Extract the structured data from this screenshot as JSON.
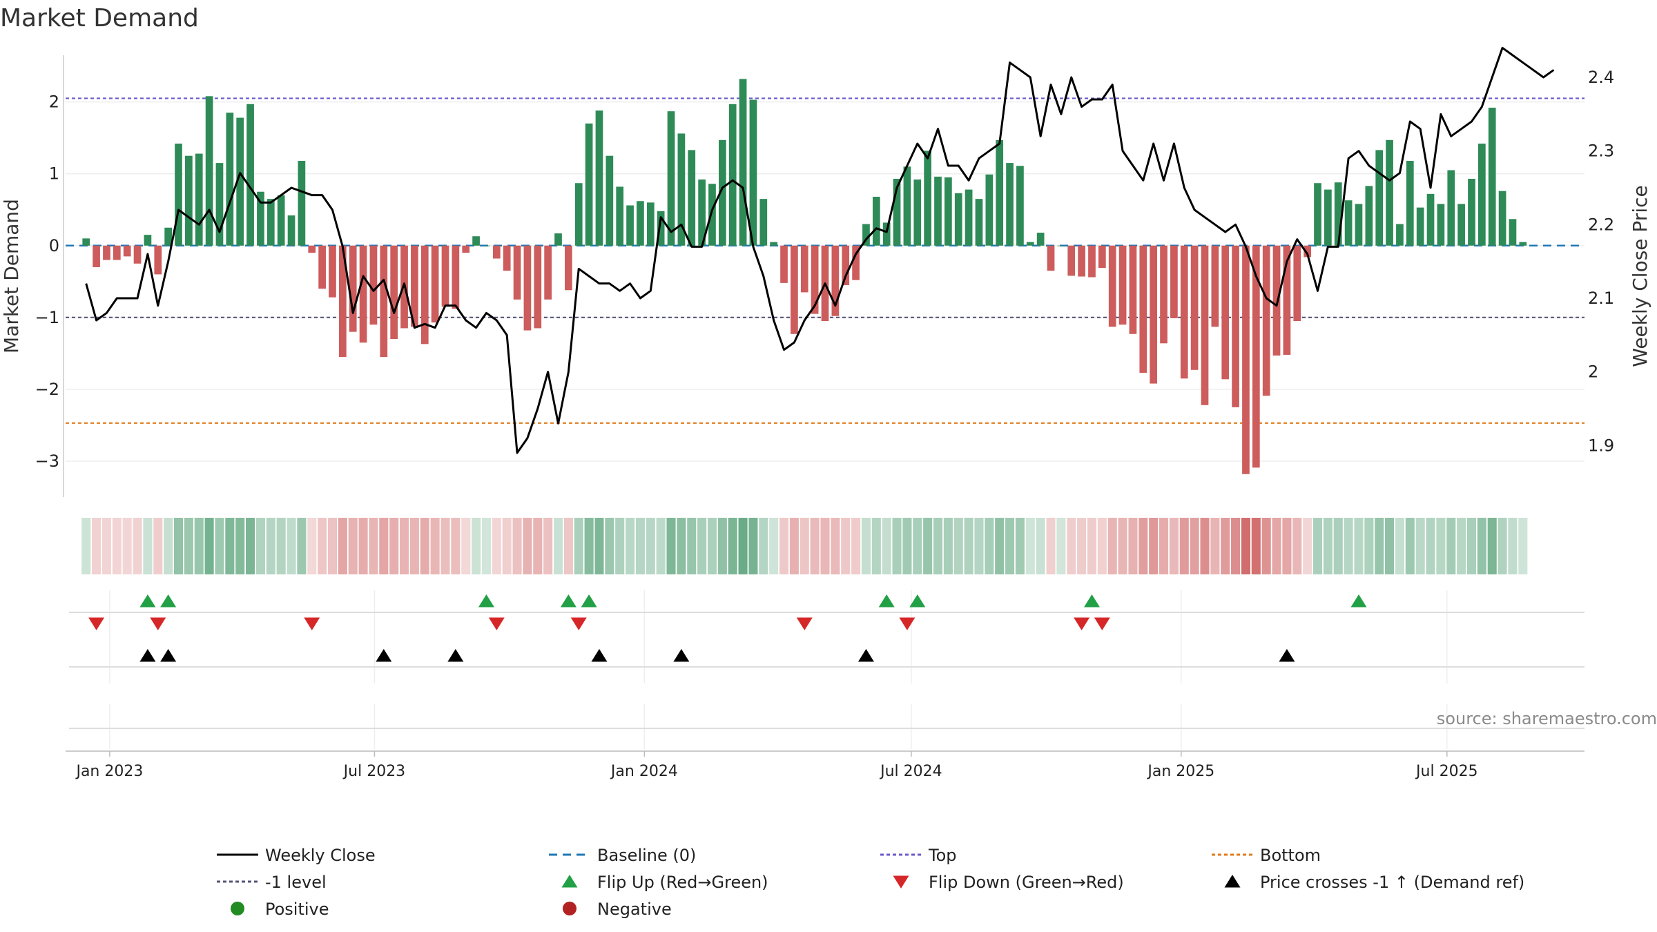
{
  "title": "Market Demand",
  "source": "source: sharemaestro.com",
  "colors": {
    "positive": "#2e8b57",
    "negative": "#cd5c5c",
    "price": "#000000",
    "baseline": "#1f77b4",
    "top": "#6a5acd",
    "minus_one": "#555577",
    "bottom": "#e07b1a",
    "flip_up": "#22a045",
    "flip_down": "#d62728",
    "cross": "#000000",
    "positive_dot": "#228b22",
    "negative_dot": "#b22222"
  },
  "chart_data": {
    "type": "bar",
    "title": "Market Demand",
    "ylabel": "Market Demand",
    "y2label": "Weekly Close Price",
    "ylim": [
      -3.5,
      2.65
    ],
    "y2lim": [
      1.83,
      2.43
    ],
    "yticks": [
      2,
      1,
      0,
      -1,
      -2,
      -3
    ],
    "yticklabels": [
      "2",
      "1",
      "0",
      "−1",
      "−2",
      "−3"
    ],
    "y2ticks": [
      2.4,
      2.3,
      2.2,
      2.1,
      2.0,
      1.9
    ],
    "y2ticklabels": [
      "2.4",
      "2.3",
      "2.2",
      "2.1",
      "2",
      "1.9"
    ],
    "x_start": "2022-12-19",
    "x_weeks": 145,
    "x_axis_weeks": [
      -2,
      146
    ],
    "xticks": [
      {
        "week": 2.3,
        "label": "Jan 2023"
      },
      {
        "week": 28.1,
        "label": "Jul 2023"
      },
      {
        "week": 54.4,
        "label": "Jan 2024"
      },
      {
        "week": 80.4,
        "label": "Jul 2024"
      },
      {
        "week": 106.7,
        "label": "Jan 2025"
      },
      {
        "week": 132.6,
        "label": "Jul 2025"
      }
    ],
    "reference_lines": {
      "top": 2.05,
      "minus_one": -1.0,
      "bottom": -2.47,
      "baseline": 0
    },
    "series": [
      {
        "name": "Market Demand",
        "values": [
          0.1,
          -0.3,
          -0.2,
          -0.2,
          -0.15,
          -0.25,
          0.15,
          -0.4,
          0.25,
          1.42,
          1.25,
          1.28,
          2.08,
          1.15,
          1.85,
          1.78,
          1.97,
          0.75,
          0.65,
          0.7,
          0.42,
          1.18,
          -0.1,
          -0.6,
          -0.72,
          -1.55,
          -1.2,
          -1.35,
          -1.1,
          -1.55,
          -1.3,
          -1.15,
          -1.13,
          -1.37,
          -1.07,
          -0.85,
          -0.88,
          -0.1,
          0.13,
          0,
          -0.18,
          -0.35,
          -0.75,
          -1.18,
          -1.15,
          -0.75,
          0.17,
          -0.62,
          0.87,
          1.7,
          1.88,
          1.25,
          0.82,
          0.56,
          0.62,
          0.6,
          0.48,
          1.87,
          1.56,
          1.33,
          0.92,
          0.86,
          1.47,
          1.97,
          2.32,
          2.03,
          0.65,
          0.05,
          -0.52,
          -1.23,
          -0.65,
          -0.95,
          -1.05,
          -0.98,
          -0.55,
          -0.48,
          0.3,
          0.68,
          0.32,
          0.93,
          1.1,
          0.92,
          1.32,
          0.96,
          0.95,
          0.73,
          0.78,
          0.65,
          0.99,
          1.47,
          1.15,
          1.11,
          0.05,
          0.18,
          -0.35,
          0,
          -0.42,
          -0.43,
          -0.44,
          -0.31,
          -1.13,
          -1.1,
          -1.23,
          -1.77,
          -1.92,
          -1.36,
          -1.01,
          -1.85,
          -1.73,
          -2.22,
          -1.13,
          -1.86,
          -2.25,
          -3.18,
          -3.09,
          -2.09,
          -1.53,
          -1.52,
          -1.05,
          -0.16,
          0.87,
          0.78,
          0.88,
          0.63,
          0.58,
          0.83,
          1.33,
          1.47,
          0.3,
          1.18,
          0.53,
          0.72,
          0.58,
          1.05,
          0.58,
          0.93,
          1.42,
          1.92,
          0.76,
          0.37,
          0.05
        ]
      },
      {
        "name": "Weekly Close",
        "axis": "right",
        "values": [
          2.12,
          2.07,
          2.08,
          2.1,
          2.1,
          2.1,
          2.16,
          2.09,
          2.15,
          2.22,
          2.21,
          2.2,
          2.22,
          2.19,
          2.23,
          2.27,
          2.25,
          2.23,
          2.23,
          2.24,
          2.25,
          2.245,
          2.24,
          2.24,
          2.22,
          2.17,
          2.08,
          2.13,
          2.11,
          2.125,
          2.08,
          2.12,
          2.06,
          2.065,
          2.06,
          2.09,
          2.09,
          2.07,
          2.06,
          2.08,
          2.07,
          2.05,
          1.89,
          1.91,
          1.95,
          2.0,
          1.93,
          2.0,
          2.14,
          2.13,
          2.12,
          2.12,
          2.11,
          2.12,
          2.1,
          2.11,
          2.21,
          2.19,
          2.2,
          2.17,
          2.17,
          2.22,
          2.25,
          2.26,
          2.25,
          2.17,
          2.13,
          2.07,
          2.03,
          2.04,
          2.07,
          2.09,
          2.12,
          2.09,
          2.13,
          2.16,
          2.18,
          2.195,
          2.19,
          2.25,
          2.28,
          2.31,
          2.29,
          2.33,
          2.28,
          2.28,
          2.26,
          2.29,
          2.3,
          2.31,
          2.42,
          2.41,
          2.4,
          2.32,
          2.39,
          2.35,
          2.4,
          2.36,
          2.37,
          2.37,
          2.39,
          2.3,
          2.28,
          2.26,
          2.31,
          2.26,
          2.31,
          2.25,
          2.22,
          2.21,
          2.2,
          2.19,
          2.2,
          2.17,
          2.13,
          2.1,
          2.09,
          2.15,
          2.18,
          2.16,
          2.11,
          2.17,
          2.17,
          2.29,
          2.3,
          2.28,
          2.27,
          2.26,
          2.27,
          2.34,
          2.33,
          2.25,
          2.35,
          2.32,
          2.33,
          2.34,
          2.36,
          2.4,
          2.44,
          2.43,
          2.42,
          2.41,
          2.4,
          2.41
        ]
      }
    ],
    "flip_up_weeks": [
      6,
      8,
      39,
      47,
      49,
      78,
      81,
      98,
      124
    ],
    "flip_down_weeks": [
      1,
      7,
      22,
      40,
      48,
      70,
      80,
      97,
      99
    ],
    "cross_weeks": [
      6,
      8,
      29,
      36,
      50,
      58,
      76,
      117
    ],
    "legend": [
      {
        "label": "Weekly Close",
        "style": "solid-line",
        "color": "price"
      },
      {
        "label": "Baseline (0)",
        "style": "dashed-line",
        "color": "baseline"
      },
      {
        "label": "Top",
        "style": "dotted-line",
        "color": "top"
      },
      {
        "label": "Bottom",
        "style": "dotted-line",
        "color": "bottom"
      },
      {
        "label": "-1 level",
        "style": "dotted-line",
        "color": "minus_one"
      },
      {
        "label": "Flip Up (Red→Green)",
        "style": "triangle-up",
        "color": "flip_up"
      },
      {
        "label": "Flip Down (Green→Red)",
        "style": "triangle-down",
        "color": "flip_down"
      },
      {
        "label": "Price crosses -1 ↑ (Demand ref)",
        "style": "triangle-up",
        "color": "cross"
      },
      {
        "label": "Positive",
        "style": "dot",
        "color": "positive_dot"
      },
      {
        "label": "Negative",
        "style": "dot",
        "color": "negative_dot"
      }
    ]
  }
}
